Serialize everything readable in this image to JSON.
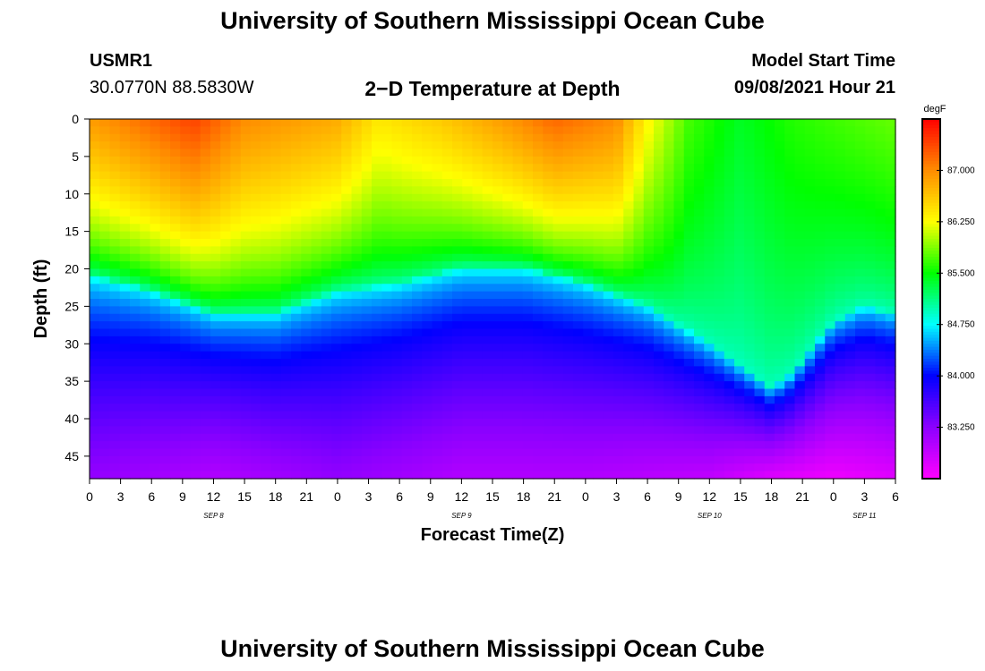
{
  "header": {
    "title_top": "University of Southern Mississippi Ocean Cube",
    "title_bottom": "University of Southern Mississippi Ocean Cube",
    "station_id": "USMR1",
    "station_coords": "30.0770N  88.5830W",
    "plot_title": "2−D Temperature at Depth",
    "model_start_label": "Model Start Time",
    "model_start_value": "09/08/2021 Hour 21"
  },
  "chart_data": {
    "type": "heatmap",
    "title": "2−D Temperature at Depth",
    "xlabel": "Forecast Time(Z)",
    "ylabel": "Depth (ft)",
    "x_tick_labels": [
      "0",
      "3",
      "6",
      "9",
      "12",
      "15",
      "18",
      "21",
      "0",
      "3",
      "6",
      "9",
      "12",
      "15",
      "18",
      "21",
      "0",
      "3",
      "6",
      "9",
      "12",
      "15",
      "18",
      "21",
      "0",
      "3",
      "6"
    ],
    "x_range_hours": [
      0,
      78
    ],
    "day_labels": [
      {
        "label": "SEP 8",
        "hour": 12
      },
      {
        "label": "SEP 9",
        "hour": 36
      },
      {
        "label": "SEP 10",
        "hour": 60
      },
      {
        "label": "SEP 11",
        "hour": 75
      }
    ],
    "y_ticks": [
      0,
      5,
      10,
      15,
      20,
      25,
      30,
      35,
      40,
      45
    ],
    "y_range_ft": [
      0,
      48
    ],
    "colorbar": {
      "unit": "degF",
      "range": [
        82.5,
        87.75
      ],
      "tick_values": [
        83.25,
        84.0,
        84.75,
        85.5,
        86.25,
        87.0
      ],
      "tick_labels": [
        "83.250",
        "84.000",
        "84.750",
        "85.500",
        "86.250",
        "87.000"
      ],
      "colors": [
        "#ff00ff",
        "#8c00ff",
        "#0000ff",
        "#00ffff",
        "#00ff00",
        "#ffff00",
        "#ff8c00",
        "#ff0000"
      ]
    },
    "surface_temp_degF": [
      [
        0,
        86.9
      ],
      [
        10,
        87.4
      ],
      [
        15,
        87.0
      ],
      [
        24,
        86.8
      ],
      [
        28,
        86.4
      ],
      [
        34,
        86.6
      ],
      [
        40,
        86.9
      ],
      [
        45,
        87.2
      ],
      [
        51,
        87.0
      ],
      [
        54,
        86.3
      ],
      [
        58,
        85.7
      ],
      [
        63,
        85.4
      ],
      [
        68,
        85.6
      ],
      [
        73,
        85.7
      ],
      [
        78,
        85.8
      ]
    ],
    "thermocline_depth_ft": [
      [
        0,
        21
      ],
      [
        6,
        23
      ],
      [
        12,
        26
      ],
      [
        18,
        26
      ],
      [
        24,
        23
      ],
      [
        30,
        22
      ],
      [
        36,
        20
      ],
      [
        42,
        20
      ],
      [
        48,
        22
      ],
      [
        54,
        25
      ],
      [
        60,
        30
      ],
      [
        63,
        33
      ],
      [
        66,
        36
      ],
      [
        68,
        34
      ],
      [
        72,
        27
      ],
      [
        75,
        25
      ],
      [
        78,
        26
      ]
    ],
    "bottom_temp_degF": [
      [
        0,
        83.2
      ],
      [
        12,
        83.0
      ],
      [
        24,
        83.2
      ],
      [
        36,
        83.0
      ],
      [
        48,
        83.0
      ],
      [
        60,
        82.9
      ],
      [
        66,
        82.7
      ],
      [
        72,
        82.6
      ],
      [
        78,
        82.7
      ]
    ]
  }
}
